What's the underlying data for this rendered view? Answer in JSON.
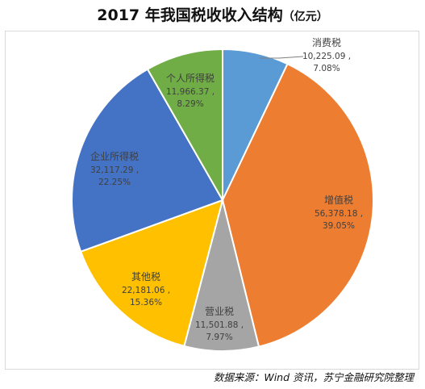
{
  "chart_data": {
    "type": "pie",
    "title": "2017 年我国税收收入结构",
    "unit": "（亿元）",
    "slices": [
      {
        "name": "消费税",
        "value": 10225.09,
        "value_label": "10,225.09",
        "percent_label": "7.08%",
        "color": "#5B9BD5"
      },
      {
        "name": "增值税",
        "value": 56378.18,
        "value_label": "56,378.18",
        "percent_label": "39.05%",
        "color": "#ED7D31"
      },
      {
        "name": "营业税",
        "value": 11501.88,
        "value_label": "11,501.88",
        "percent_label": "7.97%",
        "color": "#A5A5A5"
      },
      {
        "name": "其他税",
        "value": 22181.06,
        "value_label": "22,181.06",
        "percent_label": "15.36%",
        "color": "#FFC000"
      },
      {
        "name": "企业所得税",
        "value": 32117.29,
        "value_label": "32,117.29",
        "percent_label": "22.25%",
        "color": "#4472C4"
      },
      {
        "name": "个人所得税",
        "value": 11966.37,
        "value_label": "11,966.37",
        "percent_label": "8.29%",
        "color": "#70AD47"
      }
    ],
    "label_separator": " ,",
    "start_angle": "12 o'clock",
    "direction": "clockwise",
    "legend": "none"
  },
  "source_note": "数据来源：Wind 资讯，苏宁金融研究院整理"
}
